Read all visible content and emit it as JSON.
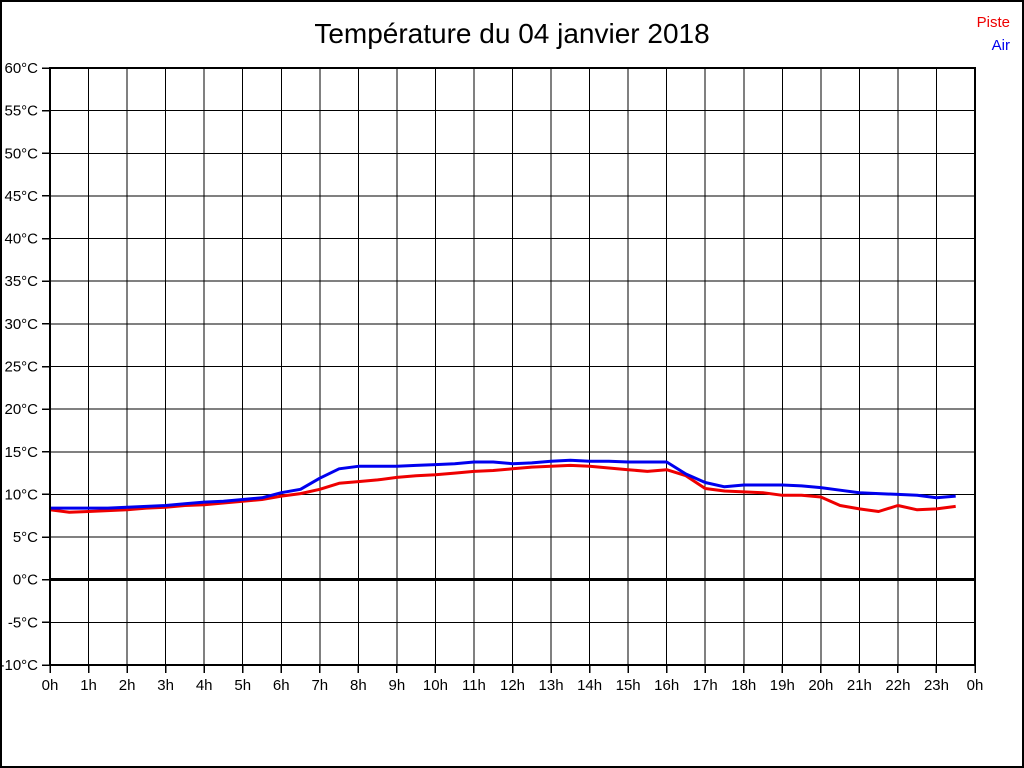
{
  "header": {
    "title": "Température du 04 janvier 2018"
  },
  "legend": {
    "items": [
      {
        "label": "Piste",
        "color": "#ee0000"
      },
      {
        "label": "Air",
        "color": "#0000ee"
      }
    ]
  },
  "chart_data": {
    "type": "line",
    "title": "Température du 04 janvier 2018",
    "xlabel": "",
    "ylabel": "",
    "xlim": [
      0,
      24
    ],
    "ylim": [
      -10,
      60
    ],
    "y_tick_step": 5,
    "grid": true,
    "grid_color": "#000000",
    "zero_line": true,
    "zero_line_value": 0,
    "legend_position": "top-right",
    "x_tick_labels": [
      "0h",
      "1h",
      "2h",
      "3h",
      "4h",
      "5h",
      "6h",
      "7h",
      "8h",
      "9h",
      "10h",
      "11h",
      "12h",
      "13h",
      "14h",
      "15h",
      "16h",
      "17h",
      "18h",
      "19h",
      "20h",
      "21h",
      "22h",
      "23h",
      "0h"
    ],
    "y_tick_labels": [
      "60°C",
      "55°C",
      "50°C",
      "45°C",
      "40°C",
      "35°C",
      "30°C",
      "25°C",
      "20°C",
      "15°C",
      "10°C",
      "5°C",
      "0°C",
      "-5°C",
      "-10°C"
    ],
    "x": [
      0,
      0.5,
      1,
      1.5,
      2,
      2.5,
      3,
      3.5,
      4,
      4.5,
      5,
      5.5,
      6,
      6.5,
      7,
      7.5,
      8,
      8.5,
      9,
      9.5,
      10,
      10.5,
      11,
      11.5,
      12,
      12.5,
      13,
      13.5,
      14,
      14.5,
      15,
      15.5,
      16,
      16.5,
      17,
      17.5,
      18,
      18.5,
      19,
      19.5,
      20,
      20.5,
      21,
      21.5,
      22,
      22.5,
      23,
      23.5
    ],
    "series": [
      {
        "name": "Piste",
        "color": "#ee0000",
        "values": [
          8.2,
          7.9,
          8.0,
          8.1,
          8.2,
          8.4,
          8.5,
          8.7,
          8.8,
          9.0,
          9.2,
          9.4,
          9.8,
          10.1,
          10.6,
          11.3,
          11.5,
          11.7,
          12.0,
          12.2,
          12.3,
          12.5,
          12.7,
          12.8,
          13.0,
          13.2,
          13.3,
          13.4,
          13.3,
          13.1,
          12.9,
          12.7,
          12.9,
          12.2,
          10.7,
          10.4,
          10.3,
          10.2,
          9.9,
          9.9,
          9.7,
          8.7,
          8.3,
          8.0,
          8.7,
          8.2,
          8.3,
          8.6
        ]
      },
      {
        "name": "Air",
        "color": "#0000ee",
        "values": [
          8.4,
          8.4,
          8.4,
          8.4,
          8.5,
          8.6,
          8.7,
          8.9,
          9.1,
          9.2,
          9.4,
          9.6,
          10.2,
          10.6,
          11.9,
          13.0,
          13.3,
          13.3,
          13.3,
          13.4,
          13.5,
          13.6,
          13.8,
          13.8,
          13.6,
          13.7,
          13.9,
          14.0,
          13.9,
          13.9,
          13.8,
          13.8,
          13.8,
          12.4,
          11.4,
          10.9,
          11.1,
          11.1,
          11.1,
          11.0,
          10.8,
          10.5,
          10.2,
          10.1,
          10.0,
          9.9,
          9.6,
          9.8
        ]
      }
    ]
  }
}
